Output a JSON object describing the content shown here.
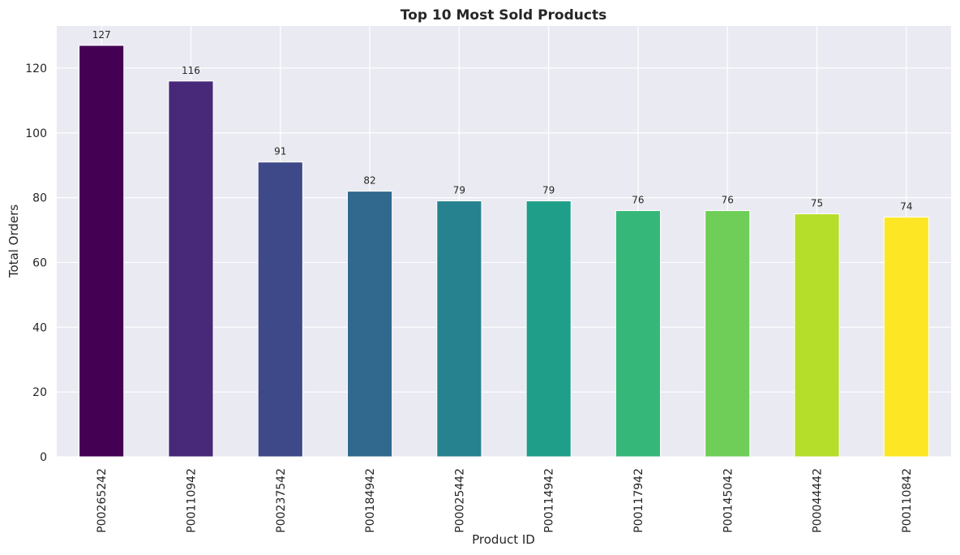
{
  "chart_data": {
    "type": "bar",
    "title": "Top 10 Most Sold Products",
    "xlabel": "Product ID",
    "ylabel": "Total Orders",
    "categories": [
      "P00265242",
      "P00110942",
      "P00237542",
      "P00184942",
      "P00025442",
      "P00114942",
      "P00117942",
      "P00145042",
      "P00044442",
      "P00110842"
    ],
    "values": [
      127,
      116,
      91,
      82,
      79,
      79,
      76,
      76,
      75,
      74
    ],
    "data_labels": [
      "127",
      "116",
      "91",
      "82",
      "79",
      "79",
      "76",
      "76",
      "75",
      "74"
    ],
    "colors": [
      "#440154",
      "#482878",
      "#3e4989",
      "#31688e",
      "#26828e",
      "#1f9e89",
      "#35b779",
      "#6ece58",
      "#b5de2b",
      "#fde725"
    ],
    "yticks": [
      "0",
      "20",
      "40",
      "60",
      "80",
      "100",
      "120"
    ],
    "ylim": [
      0,
      133
    ],
    "grid": true,
    "background": "#eaeaf2",
    "tick_label_rotation": "vertical"
  }
}
